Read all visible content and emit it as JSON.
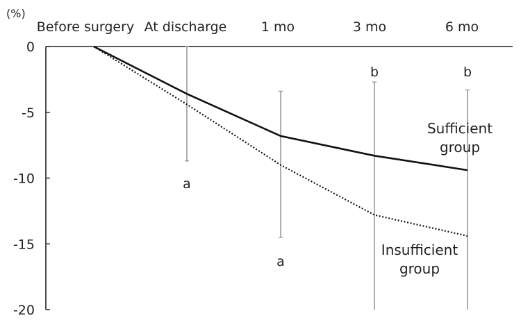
{
  "chart_data": {
    "type": "line",
    "y_unit": "(%)",
    "categories": [
      "Before surgery",
      "At discharge",
      "1 mo",
      "3 mo",
      "6 mo"
    ],
    "y_ticks": [
      "0",
      "-5",
      "-10",
      "-15",
      "-20"
    ],
    "ylim": [
      -20,
      0
    ],
    "grid": false,
    "series": [
      {
        "name": "Sufficient group",
        "label_lines": [
          "Sufficient",
          "group"
        ],
        "style": "solid",
        "color": "#111111",
        "values": [
          0,
          -3.6,
          -6.8,
          -8.3,
          -9.4
        ],
        "error_bars": [
          null,
          [
            -8.7,
            0
          ],
          [
            -14.5,
            -3.4
          ],
          [
            -20,
            -2.7
          ],
          [
            -20,
            -3.3
          ]
        ]
      },
      {
        "name": "Insufficient group",
        "label_lines": [
          "Insufficient",
          "group"
        ],
        "style": "dotted",
        "color": "#111111",
        "values": [
          0,
          -4.4,
          -9.0,
          -12.8,
          -14.4
        ],
        "error_bars": null
      }
    ],
    "annotations": [
      {
        "text": "a",
        "category": 1,
        "y": -10.4
      },
      {
        "text": "a",
        "category": 2,
        "y": -16.3
      },
      {
        "text": "b",
        "category": 3,
        "y": -1.9
      },
      {
        "text": "b",
        "category": 4,
        "y": -1.9
      }
    ],
    "error_bar_color": "#9a9a9a"
  }
}
